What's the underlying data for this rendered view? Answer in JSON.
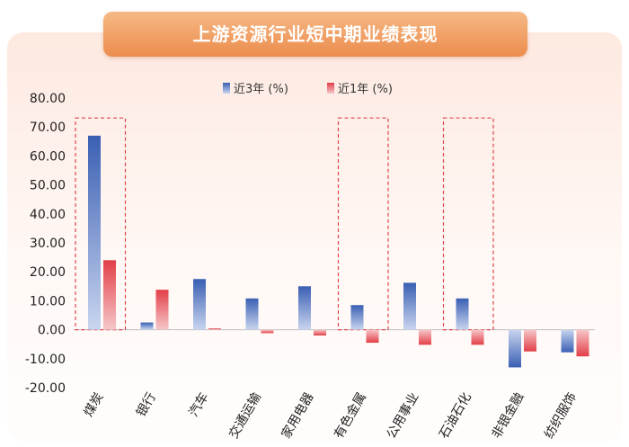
{
  "chart_data": {
    "type": "bar",
    "title": "上游资源行业短中期业绩表现",
    "categories": [
      "煤炭",
      "银行",
      "汽车",
      "交通运输",
      "家用电器",
      "有色金属",
      "公用事业",
      "石油石化",
      "非银金融",
      "纺织服饰"
    ],
    "series": [
      {
        "name": "近3年 (%)",
        "values": [
          67.0,
          2.5,
          17.5,
          10.8,
          15.0,
          8.5,
          16.2,
          10.8,
          -13.0,
          -7.8
        ]
      },
      {
        "name": "近1年 (%)",
        "values": [
          24.0,
          13.8,
          0.5,
          -1.2,
          -2.0,
          -4.5,
          -5.2,
          -5.2,
          -7.5,
          -9.2
        ]
      }
    ],
    "yticks": [
      "80.00",
      "70.00",
      "60.00",
      "50.00",
      "40.00",
      "30.00",
      "20.00",
      "10.00",
      "0.00",
      "-10.00",
      "-20.00"
    ],
    "ylim": [
      -20,
      80
    ],
    "highlighted": [
      "煤炭",
      "有色金属",
      "石油石化"
    ],
    "colors": {
      "series_1": "#3f63b5",
      "series_2": "#e0454c",
      "highlight_box": "#e0454c"
    }
  }
}
